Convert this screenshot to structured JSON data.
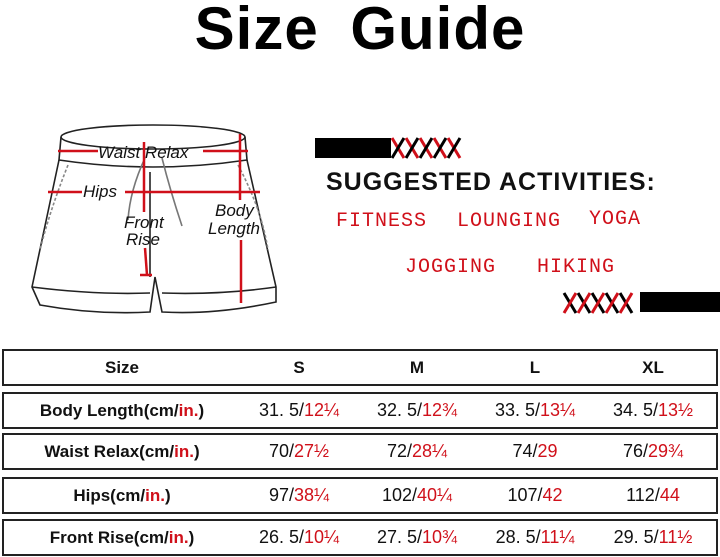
{
  "title": "Size Guide",
  "diagram": {
    "labels": {
      "waist": "Waist Relax",
      "hips": "Hips",
      "front_rise_1": "Front",
      "front_rise_2": "Rise",
      "body_length_1": "Body",
      "body_length_2": "Length"
    },
    "measure_color": "#d0101a"
  },
  "activities": {
    "heading": "SUGGESTED ACTIVITIES:",
    "items": [
      "FITNESS",
      "LOUNGING",
      "YOGA",
      "JOGGING",
      "HIKING"
    ],
    "color": "#d0101a"
  },
  "table": {
    "header": [
      "Size",
      "S",
      "M",
      "L",
      "XL"
    ],
    "rows": [
      {
        "label": "Body Length(cm/",
        "unit": "in.",
        "close": ")",
        "values": [
          {
            "cm": "31. 5/",
            "in": "12¼"
          },
          {
            "cm": "32. 5/",
            "in": "12¾"
          },
          {
            "cm": "33. 5/",
            "in": "13¼"
          },
          {
            "cm": "34. 5/",
            "in": "13½"
          }
        ]
      },
      {
        "label": "Waist Relax(cm/",
        "unit": "in.",
        "close": ")",
        "values": [
          {
            "cm": "70/",
            "in": "27½"
          },
          {
            "cm": "72/",
            "in": "28¼"
          },
          {
            "cm": "74/",
            "in": "29"
          },
          {
            "cm": "76/",
            "in": "29¾"
          }
        ]
      },
      {
        "label": "Hips(cm/",
        "unit": "in.",
        "close": ")",
        "values": [
          {
            "cm": "97/",
            "in": "38¼"
          },
          {
            "cm": "102/",
            "in": "40¼"
          },
          {
            "cm": "107/",
            "in": "42"
          },
          {
            "cm": "112/",
            "in": "44"
          }
        ]
      },
      {
        "label": "Front Rise(cm/",
        "unit": "in.",
        "close": ")",
        "values": [
          {
            "cm": "26. 5/",
            "in": "10¼"
          },
          {
            "cm": "27. 5/",
            "in": "10¾"
          },
          {
            "cm": "28. 5/",
            "in": "11¼"
          },
          {
            "cm": "29. 5/",
            "in": "11½"
          }
        ]
      }
    ]
  }
}
